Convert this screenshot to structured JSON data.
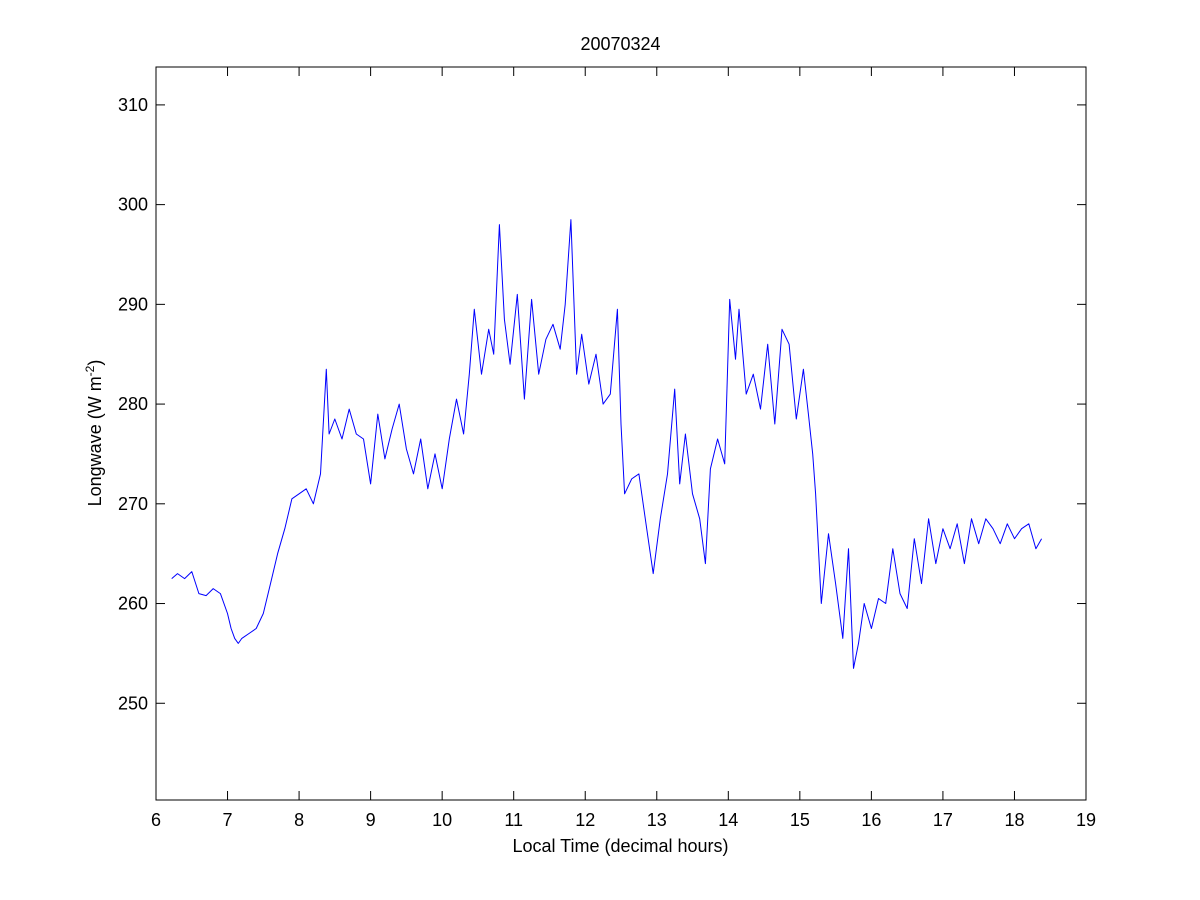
{
  "chart_data": {
    "type": "line",
    "title": "20070324",
    "xlabel": "Local Time (decimal hours)",
    "ylabel_main": "Longwave (W m",
    "ylabel_sup": "-2",
    "ylabel_close": ")",
    "xlim": [
      6,
      19
    ],
    "ylim": [
      240.3,
      313.8
    ],
    "xticks": [
      6,
      7,
      8,
      9,
      10,
      11,
      12,
      13,
      14,
      15,
      16,
      17,
      18,
      19
    ],
    "yticks": [
      250,
      260,
      270,
      280,
      290,
      300,
      310
    ],
    "grid": false,
    "line_color": "#0000ff",
    "series": [
      {
        "x": [
          6.22,
          6.3,
          6.4,
          6.5,
          6.6,
          6.7,
          6.8,
          6.9,
          7.0,
          7.05,
          7.1,
          7.15,
          7.2,
          7.3,
          7.4,
          7.5,
          7.6,
          7.7,
          7.8,
          7.9,
          8.0,
          8.1,
          8.2,
          8.3,
          8.38,
          8.42,
          8.5,
          8.6,
          8.7,
          8.8,
          8.9,
          9.0,
          9.1,
          9.2,
          9.3,
          9.4,
          9.5,
          9.6,
          9.7,
          9.8,
          9.9,
          10.0,
          10.1,
          10.2,
          10.3,
          10.38,
          10.45,
          10.55,
          10.65,
          10.72,
          10.8,
          10.87,
          10.95,
          11.05,
          11.15,
          11.25,
          11.35,
          11.45,
          11.55,
          11.65,
          11.72,
          11.8,
          11.88,
          11.95,
          12.05,
          12.15,
          12.25,
          12.35,
          12.45,
          12.5,
          12.55,
          12.65,
          12.75,
          12.85,
          12.95,
          13.05,
          13.15,
          13.25,
          13.32,
          13.4,
          13.5,
          13.6,
          13.68,
          13.75,
          13.85,
          13.95,
          14.02,
          14.1,
          14.15,
          14.25,
          14.35,
          14.45,
          14.55,
          14.65,
          14.75,
          14.85,
          14.95,
          15.05,
          15.12,
          15.18,
          15.22,
          15.3,
          15.4,
          15.5,
          15.6,
          15.68,
          15.75,
          15.82,
          15.9,
          16.0,
          16.1,
          16.2,
          16.3,
          16.4,
          16.5,
          16.6,
          16.7,
          16.8,
          16.9,
          17.0,
          17.1,
          17.2,
          17.3,
          17.4,
          17.5,
          17.6,
          17.7,
          17.8,
          17.9,
          18.0,
          18.1,
          18.2,
          18.3,
          18.38
        ],
        "y": [
          262.5,
          263.0,
          262.5,
          263.2,
          261.0,
          260.8,
          261.5,
          261.0,
          259.0,
          257.5,
          256.5,
          256.0,
          256.5,
          257.0,
          257.5,
          259.0,
          262.0,
          265.0,
          267.5,
          270.5,
          271.0,
          271.5,
          270.0,
          273.0,
          283.5,
          277.0,
          278.5,
          276.5,
          279.5,
          277.0,
          276.5,
          272.0,
          279.0,
          274.5,
          277.5,
          280.0,
          275.5,
          273.0,
          276.5,
          271.5,
          275.0,
          271.5,
          276.5,
          280.5,
          277.0,
          283.0,
          289.5,
          283.0,
          287.5,
          285.0,
          298.0,
          288.5,
          284.0,
          291.0,
          280.5,
          290.5,
          283.0,
          286.5,
          288.0,
          285.5,
          290.0,
          298.5,
          283.0,
          287.0,
          282.0,
          285.0,
          280.0,
          281.0,
          289.5,
          278.0,
          271.0,
          272.5,
          273.0,
          268.0,
          263.0,
          268.5,
          273.0,
          281.5,
          272.0,
          277.0,
          271.0,
          268.5,
          264.0,
          273.5,
          276.5,
          274.0,
          290.5,
          284.5,
          289.5,
          281.0,
          283.0,
          279.5,
          286.0,
          278.0,
          287.5,
          286.0,
          278.5,
          283.5,
          279.0,
          275.0,
          271.0,
          260.0,
          267.0,
          262.0,
          256.5,
          265.5,
          253.5,
          256.0,
          260.0,
          257.5,
          260.5,
          260.0,
          265.5,
          261.0,
          259.5,
          266.5,
          262.0,
          268.5,
          264.0,
          267.5,
          265.5,
          268.0,
          264.0,
          268.5,
          266.0,
          268.5,
          267.5,
          266.0,
          268.0,
          266.5,
          267.5,
          268.0,
          265.5,
          266.5
        ]
      }
    ]
  }
}
